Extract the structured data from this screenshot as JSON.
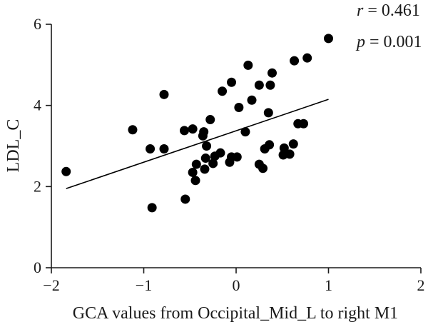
{
  "chart_data": {
    "type": "scatter",
    "xlabel": "GCA values from Occipital_Mid_L to right M1",
    "ylabel": "LDL_C",
    "xlim": [
      -2,
      2
    ],
    "ylim": [
      0,
      6
    ],
    "x_ticks": [
      "−2",
      "−1",
      "0",
      "1",
      "2"
    ],
    "y_ticks": [
      "0",
      "2",
      "4",
      "6"
    ],
    "x_tick_values": [
      -2,
      -1,
      0,
      1,
      2
    ],
    "y_tick_values": [
      0,
      2,
      4,
      6
    ],
    "grid": false,
    "annotations": {
      "r_symbol": "r",
      "r_value": " = 0.461",
      "p_symbol": "p",
      "p_value": " = 0.001"
    },
    "fit_line": {
      "x": [
        -1.84,
        1.0
      ],
      "y": [
        1.95,
        4.15
      ]
    },
    "points": [
      {
        "x": -1.84,
        "y": 2.37
      },
      {
        "x": -1.12,
        "y": 3.4
      },
      {
        "x": -0.93,
        "y": 2.93
      },
      {
        "x": -0.91,
        "y": 1.48
      },
      {
        "x": -0.78,
        "y": 4.27
      },
      {
        "x": -0.78,
        "y": 2.93
      },
      {
        "x": -0.56,
        "y": 3.38
      },
      {
        "x": -0.55,
        "y": 1.69
      },
      {
        "x": -0.47,
        "y": 3.42
      },
      {
        "x": -0.47,
        "y": 2.35
      },
      {
        "x": -0.44,
        "y": 2.15
      },
      {
        "x": -0.43,
        "y": 2.55
      },
      {
        "x": -0.36,
        "y": 3.25
      },
      {
        "x": -0.35,
        "y": 3.35
      },
      {
        "x": -0.34,
        "y": 2.43
      },
      {
        "x": -0.33,
        "y": 2.7
      },
      {
        "x": -0.32,
        "y": 3.0
      },
      {
        "x": -0.28,
        "y": 3.65
      },
      {
        "x": -0.25,
        "y": 2.57
      },
      {
        "x": -0.23,
        "y": 2.75
      },
      {
        "x": -0.17,
        "y": 2.83
      },
      {
        "x": -0.15,
        "y": 4.35
      },
      {
        "x": -0.07,
        "y": 2.6
      },
      {
        "x": -0.05,
        "y": 4.57
      },
      {
        "x": -0.05,
        "y": 2.73
      },
      {
        "x": 0.01,
        "y": 2.73
      },
      {
        "x": 0.03,
        "y": 3.95
      },
      {
        "x": 0.1,
        "y": 3.35
      },
      {
        "x": 0.13,
        "y": 4.99
      },
      {
        "x": 0.17,
        "y": 4.13
      },
      {
        "x": 0.25,
        "y": 4.5
      },
      {
        "x": 0.25,
        "y": 2.55
      },
      {
        "x": 0.29,
        "y": 2.45
      },
      {
        "x": 0.31,
        "y": 2.93
      },
      {
        "x": 0.35,
        "y": 3.82
      },
      {
        "x": 0.36,
        "y": 3.03
      },
      {
        "x": 0.37,
        "y": 4.5
      },
      {
        "x": 0.39,
        "y": 4.8
      },
      {
        "x": 0.51,
        "y": 2.78
      },
      {
        "x": 0.52,
        "y": 2.95
      },
      {
        "x": 0.58,
        "y": 2.8
      },
      {
        "x": 0.62,
        "y": 3.05
      },
      {
        "x": 0.63,
        "y": 5.1
      },
      {
        "x": 0.67,
        "y": 3.55
      },
      {
        "x": 0.73,
        "y": 3.55
      },
      {
        "x": 0.77,
        "y": 5.17
      },
      {
        "x": 1.0,
        "y": 5.65
      }
    ]
  }
}
